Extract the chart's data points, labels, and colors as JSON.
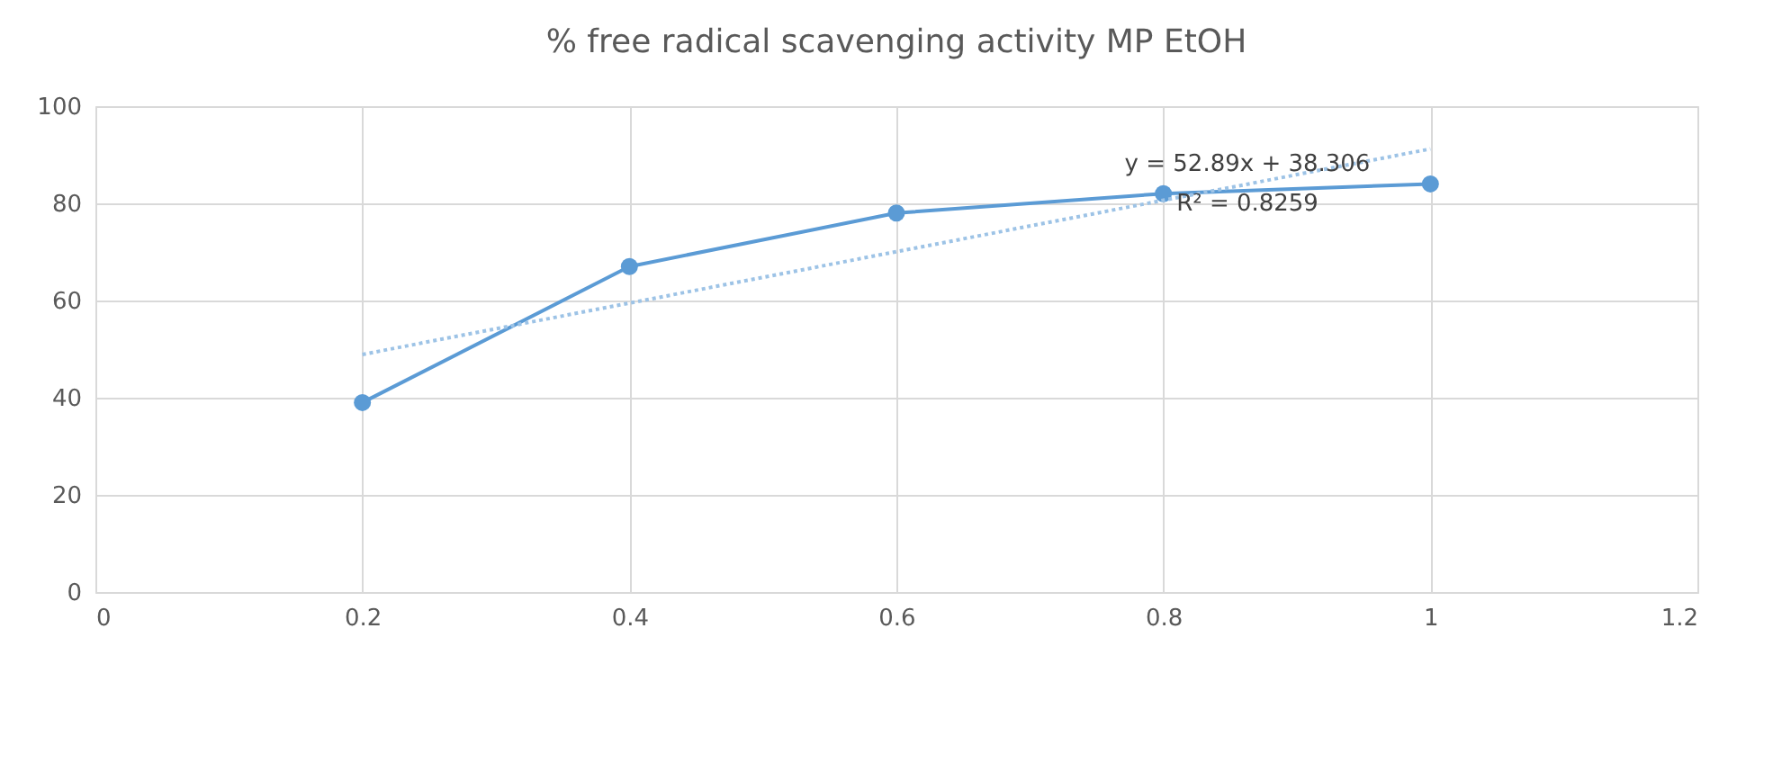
{
  "chart_data": {
    "type": "line",
    "title": "% free radical scavenging activity MP EtOH",
    "xlim": [
      0,
      1.2
    ],
    "xticks": [
      0,
      0.2,
      0.4,
      0.6,
      0.8,
      1,
      1.2
    ],
    "ylim": [
      0,
      100
    ],
    "yticks": [
      0,
      20,
      40,
      60,
      80,
      100
    ],
    "grid": true,
    "series": [
      {
        "color": "#5b9bd5",
        "marker": "circle",
        "line_style": "solid",
        "x": [
          0.2,
          0.4,
          0.6,
          0.8,
          1
        ],
        "values": [
          39,
          67,
          78,
          82,
          84
        ]
      },
      {
        "color": "#9dc3e6",
        "marker": "none",
        "line_style": "dotted",
        "x": [
          0.2,
          1
        ],
        "values": [
          48.9,
          91.2
        ]
      }
    ],
    "annotations": [
      "y = 52.89x + 38.306",
      "R² = 0.8259"
    ]
  }
}
